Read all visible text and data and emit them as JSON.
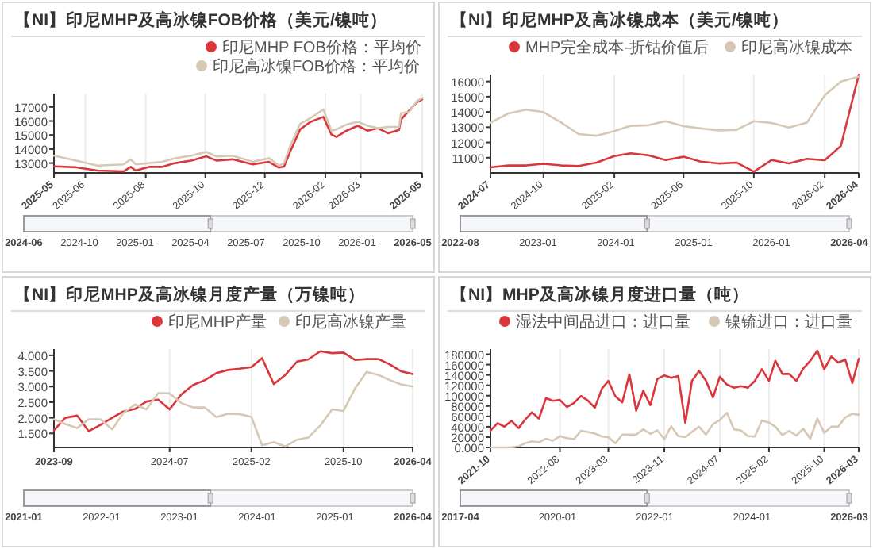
{
  "chart_data": [
    {
      "type": "line",
      "title": "【NI】印尼MHP及高冰镍FOB价格（美元/镍吨）",
      "legend": "top right",
      "grid": "x",
      "marker": "none",
      "line_style": "solid",
      "xlim": [
        "2025-05-01",
        "2026-05-01"
      ],
      "xticks": [
        {
          "value": "2025-05-01",
          "label": "2025-05"
        },
        {
          "value": "2025-06-01",
          "label": "2025-06"
        },
        {
          "value": "2025-07-31",
          "label": "2025-08"
        },
        {
          "value": "2025-09-28",
          "label": "2025-10"
        },
        {
          "value": "2025-11-26",
          "label": "2025-12"
        },
        {
          "value": "2026-01-25",
          "label": "2026-02"
        },
        {
          "value": "2026-03-01",
          "label": "2026-03"
        },
        {
          "value": "2026-05-01",
          "label": "2026-05"
        }
      ],
      "ylim": [
        12300,
        17950
      ],
      "yticks": [
        13000,
        14000,
        15000,
        16000,
        17000
      ],
      "x": [
        "2025-05-01",
        "2025-05-23",
        "2025-06-13",
        "2025-07-09",
        "2025-07-16",
        "2025-07-21",
        "2025-08-03",
        "2025-08-16",
        "2025-08-29",
        "2025-09-14",
        "2025-09-29",
        "2025-10-09",
        "2025-10-25",
        "2025-11-14",
        "2025-11-30",
        "2025-12-10",
        "2025-12-15",
        "2025-12-21",
        "2025-12-31",
        "2026-01-10",
        "2026-01-23",
        "2026-01-31",
        "2026-02-05",
        "2026-02-15",
        "2026-02-26",
        "2026-03-08",
        "2026-03-18",
        "2026-03-28",
        "2026-04-08",
        "2026-04-10",
        "2026-04-18",
        "2026-04-26",
        "2026-05-01"
      ],
      "series": [
        {
          "name": "印尼MHP FOB价格：平均价",
          "color": "#d9373b",
          "values": [
            12770,
            12700,
            12470,
            12410,
            12730,
            12470,
            12730,
            12730,
            13000,
            13180,
            13480,
            13180,
            13270,
            12910,
            13090,
            12680,
            12750,
            13800,
            15400,
            15930,
            16290,
            15040,
            14860,
            15310,
            15660,
            15310,
            15490,
            15130,
            15360,
            16110,
            16730,
            17350,
            17530
          ]
        },
        {
          "name": "印尼高冰镍FOB价格：平均价",
          "color": "#d6c8b4",
          "values": [
            13530,
            13180,
            12820,
            12910,
            13270,
            12910,
            13000,
            13090,
            13350,
            13530,
            13800,
            13480,
            13530,
            13090,
            13350,
            12820,
            13000,
            14200,
            15800,
            16200,
            16820,
            15310,
            15400,
            15750,
            15950,
            15660,
            15490,
            15580,
            15580,
            16550,
            16640,
            17440,
            17620
          ]
        }
      ],
      "annotations": [
        "2024-06",
        "2024-10",
        "2025-01",
        "2025-04",
        "2025-07",
        "2025-10",
        "2026-01",
        "2026-05"
      ]
    },
    {
      "type": "line",
      "title": "【NI】印尼MHP及高冰镍成本（美元/镍吨）",
      "legend": "top right",
      "grid": "x",
      "marker": "none",
      "line_style": "solid",
      "xlim": [
        "2024-07",
        "2026-04"
      ],
      "xticks": [
        "2024-07",
        "2024-10",
        "2025-02",
        "2025-06",
        "2025-10",
        "2026-02",
        "2026-04"
      ],
      "ylim": [
        10000,
        16450
      ],
      "yticks": [
        11000,
        12000,
        13000,
        14000,
        15000,
        16000
      ],
      "x": [
        "2024-07",
        "2024-08",
        "2024-09",
        "2024-10",
        "2024-11",
        "2024-12",
        "2025-01",
        "2025-02",
        "2025-03",
        "2025-04",
        "2025-05",
        "2025-06",
        "2025-07",
        "2025-08",
        "2025-09",
        "2025-10",
        "2025-11",
        "2025-12",
        "2026-01",
        "2026-02",
        "2026-03",
        "2026-04"
      ],
      "series": [
        {
          "name": "MHP完全成本-折钴价值后",
          "color": "#d9373b",
          "values": [
            10360,
            10490,
            10490,
            10600,
            10490,
            10450,
            10680,
            11110,
            11290,
            11160,
            10850,
            11060,
            10740,
            10620,
            10680,
            10080,
            10850,
            10620,
            10920,
            10830,
            11770,
            16430
          ]
        },
        {
          "name": "印尼高冰镍成本",
          "color": "#d6c8b4",
          "values": [
            13300,
            13900,
            14150,
            13990,
            13300,
            12550,
            12440,
            12740,
            13090,
            13130,
            13390,
            13070,
            12920,
            12790,
            12830,
            13390,
            13280,
            12980,
            13300,
            15090,
            16000,
            16320
          ]
        }
      ],
      "annotations": [
        "2022-08",
        "2023-01",
        "2024-01",
        "2025-01",
        "2026-01",
        "2026-04"
      ]
    },
    {
      "type": "line",
      "title": "【NI】印尼MHP及高冰镍月度产量（万镍吨）",
      "legend": "top right",
      "grid": "x",
      "marker": "none",
      "line_style": "solid",
      "xlim": [
        "2023-09",
        "2026-04"
      ],
      "xticks": [
        "2023-09",
        "2024-07",
        "2025-02",
        "2025-10",
        "2026-04"
      ],
      "ylim": [
        1.05,
        4.2
      ],
      "yticks": [
        {
          "value": 1.5,
          "label": "1.500"
        },
        {
          "value": 2,
          "label": "2.000"
        },
        {
          "value": 2.5,
          "label": "2.500"
        },
        {
          "value": 3,
          "label": "3.000"
        },
        {
          "value": 3.5,
          "label": "3.500"
        },
        {
          "value": 4,
          "label": "4.000"
        }
      ],
      "x": [
        "2023-09",
        "2023-10",
        "2023-11",
        "2023-12",
        "2024-01",
        "2024-02",
        "2024-03",
        "2024-04",
        "2024-05",
        "2024-06",
        "2024-07",
        "2024-08",
        "2024-09",
        "2024-10",
        "2024-11",
        "2024-12",
        "2025-01",
        "2025-02",
        "2025-03",
        "2025-04",
        "2025-05",
        "2025-06",
        "2025-07",
        "2025-08",
        "2025-09",
        "2025-10",
        "2025-11",
        "2025-12",
        "2026-01",
        "2026-02",
        "2026-03",
        "2026-04"
      ],
      "series": [
        {
          "name": "印尼MHP产量",
          "color": "#d9373b",
          "values": [
            1.6,
            2.0,
            2.07,
            1.57,
            1.77,
            2.0,
            2.2,
            2.28,
            2.52,
            2.58,
            2.27,
            2.75,
            3.05,
            3.2,
            3.43,
            3.53,
            3.57,
            3.62,
            3.91,
            3.08,
            3.37,
            3.8,
            3.87,
            4.13,
            4.07,
            4.09,
            3.85,
            3.88,
            3.88,
            3.7,
            3.49,
            3.4
          ]
        },
        {
          "name": "印尼高冰镍产量",
          "color": "#d6c8b4",
          "values": [
            1.95,
            1.8,
            1.67,
            1.95,
            1.95,
            1.63,
            2.15,
            2.43,
            2.27,
            2.79,
            2.78,
            2.47,
            2.33,
            2.33,
            2.02,
            2.13,
            2.12,
            2.03,
            1.12,
            1.22,
            1.08,
            1.3,
            1.37,
            1.75,
            2.27,
            2.22,
            2.95,
            3.47,
            3.37,
            3.2,
            3.07,
            3.0
          ]
        }
      ],
      "annotations": [
        "2021-01",
        "2022-01",
        "2023-01",
        "2024-01",
        "2025-01",
        "2026-04"
      ]
    },
    {
      "type": "line",
      "title": "【NI】MHP及高冰镍月度进口量（吨）",
      "legend": "top right",
      "grid": "x",
      "marker": "none",
      "line_style": "solid",
      "xlim": [
        "2021-10",
        "2026-03"
      ],
      "xticks": [
        "2021-10",
        "2022-08",
        "2023-03",
        "2023-11",
        "2024-07",
        "2025-02",
        "2025-10",
        "2026-03"
      ],
      "ylim": [
        0,
        190000
      ],
      "yticks": [
        {
          "value": 0,
          "label": "0.000"
        },
        20000,
        40000,
        60000,
        80000,
        100000,
        120000,
        140000,
        160000,
        180000
      ],
      "x": [
        "2021-10",
        "2021-11",
        "2021-12",
        "2022-01",
        "2022-02",
        "2022-03",
        "2022-04",
        "2022-05",
        "2022-06",
        "2022-07",
        "2022-08",
        "2022-09",
        "2022-10",
        "2022-11",
        "2022-12",
        "2023-01",
        "2023-02",
        "2023-03",
        "2023-04",
        "2023-05",
        "2023-06",
        "2023-07",
        "2023-08",
        "2023-09",
        "2023-10",
        "2023-11",
        "2023-12",
        "2024-01",
        "2024-02",
        "2024-03",
        "2024-04",
        "2024-05",
        "2024-06",
        "2024-07",
        "2024-08",
        "2024-09",
        "2024-10",
        "2024-11",
        "2024-12",
        "2025-01",
        "2025-02",
        "2025-03",
        "2025-04",
        "2025-05",
        "2025-06",
        "2025-07",
        "2025-08",
        "2025-09",
        "2025-10",
        "2025-11",
        "2025-12",
        "2026-01",
        "2026-02",
        "2026-03"
      ],
      "series": [
        {
          "name": "湿法中间品进口：进口量",
          "color": "#d9373b",
          "values": [
            32500,
            46800,
            40200,
            51500,
            37300,
            53300,
            68000,
            55600,
            95300,
            90000,
            91700,
            78100,
            85800,
            99400,
            90500,
            76900,
            113600,
            128400,
            98800,
            87000,
            141400,
            71000,
            109500,
            81700,
            132000,
            139100,
            134400,
            137900,
            47400,
            128400,
            148000,
            129000,
            96500,
            136700,
            121400,
            115400,
            118400,
            115400,
            128400,
            151000,
            128400,
            167500,
            142000,
            142000,
            128400,
            152100,
            167500,
            187000,
            151000,
            175800,
            164000,
            169800,
            124300,
            171200
          ]
        },
        {
          "name": "镍锍进口：进口量",
          "color": "#d6c8b4",
          "values": [
            0,
            0,
            0,
            400,
            2000,
            8000,
            12000,
            10000,
            17000,
            13000,
            22000,
            18000,
            16000,
            32000,
            30000,
            27000,
            21000,
            20000,
            8000,
            25000,
            25000,
            25000,
            35000,
            26000,
            33000,
            16000,
            41000,
            22000,
            20000,
            30000,
            40000,
            25000,
            45000,
            53000,
            67000,
            35000,
            33000,
            22000,
            21000,
            52000,
            48000,
            40000,
            24000,
            32000,
            23000,
            36000,
            17000,
            56000,
            28000,
            40000,
            40000,
            58000,
            65000,
            63000
          ]
        }
      ],
      "annotations": [
        "2017-04",
        "2020-01",
        "2022-01",
        "2024-01",
        "2026-03"
      ]
    }
  ]
}
